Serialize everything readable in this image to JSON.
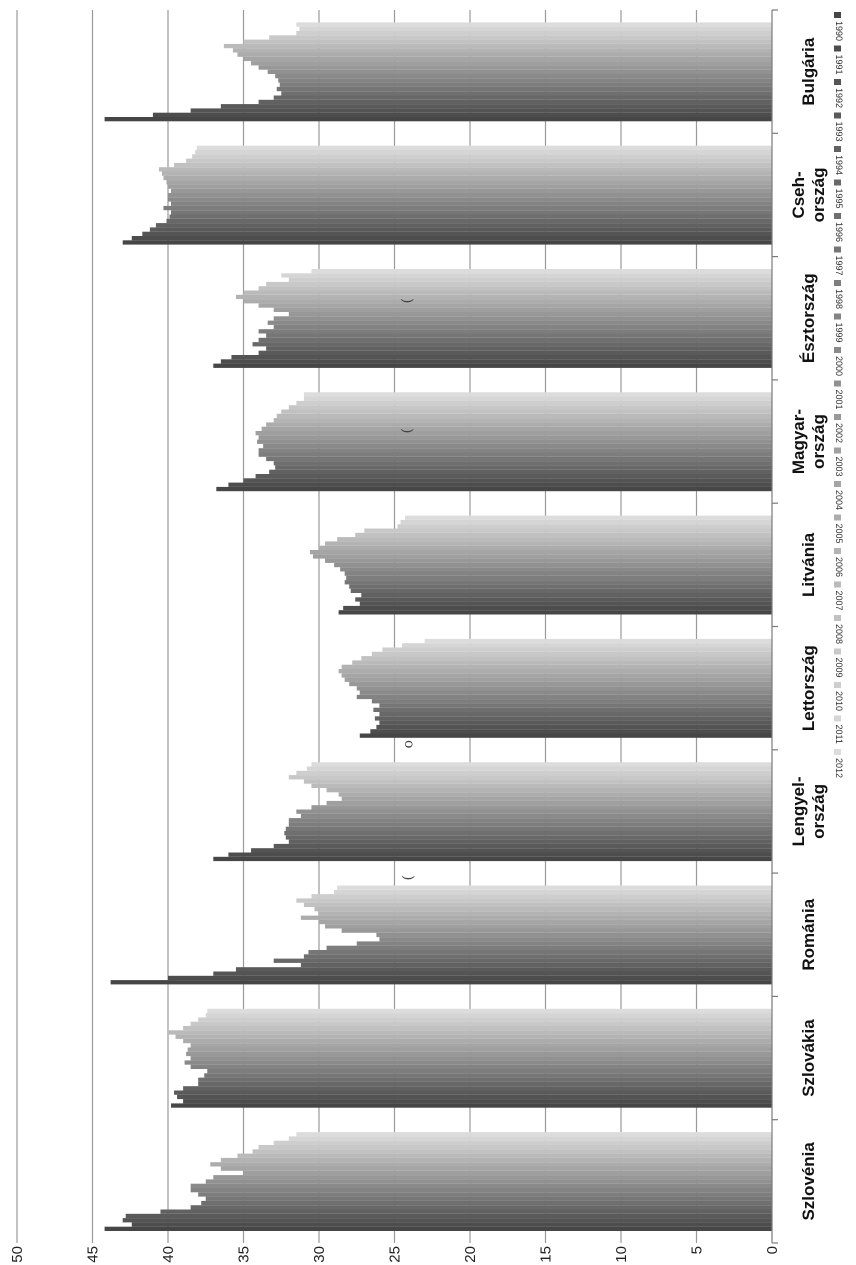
{
  "chart_data": {
    "type": "bar",
    "orientation": "horizontal",
    "title": "",
    "xlabel": "",
    "ylabel": "",
    "xlim": [
      0,
      50
    ],
    "xticks": [
      0,
      5,
      10,
      15,
      20,
      25,
      30,
      35,
      40,
      45,
      50
    ],
    "grid": true,
    "legend_position": "right",
    "categories": [
      [
        "Bulgária"
      ],
      [
        "Cseh-",
        "ország"
      ],
      [
        "Észtország"
      ],
      [
        "Magyar-",
        "ország"
      ],
      [
        "Litvánia"
      ],
      [
        "Lettország"
      ],
      [
        "Lengyel-",
        "ország"
      ],
      [
        "Románia"
      ],
      [
        "Szlovákia"
      ],
      [
        "Szlovénia"
      ]
    ],
    "years": [
      "1990",
      "1991",
      "1992",
      "1993",
      "1994",
      "1995",
      "1996",
      "1997",
      "1998",
      "1999",
      "2000",
      "2001",
      "2002",
      "2003",
      "2004",
      "2005",
      "2006",
      "2007",
      "2008",
      "2009",
      "2010",
      "2011",
      "2012"
    ],
    "values": [
      [
        44.2,
        41.0,
        38.5,
        36.5,
        34.0,
        33.0,
        32.5,
        32.8,
        32.6,
        32.7,
        32.9,
        33.4,
        34.0,
        34.5,
        35.0,
        35.4,
        35.7,
        36.3,
        35.0,
        33.3,
        31.5,
        31.3,
        31.5
      ],
      [
        43.0,
        42.4,
        41.7,
        41.2,
        40.8,
        40.1,
        39.9,
        39.8,
        40.3,
        39.8,
        40.0,
        40.0,
        39.8,
        40.0,
        40.1,
        40.3,
        40.4,
        40.6,
        39.6,
        38.8,
        38.4,
        38.2,
        38.1
      ],
      [
        37.0,
        36.5,
        35.8,
        34.0,
        33.5,
        34.4,
        34.0,
        33.5,
        34.0,
        33.0,
        33.4,
        33.0,
        32.0,
        33.0,
        34.0,
        35.0,
        35.5,
        35.0,
        34.0,
        33.5,
        32.0,
        32.5,
        30.5
      ],
      [
        36.8,
        36.0,
        35.0,
        34.2,
        33.3,
        32.9,
        33.0,
        33.5,
        34.0,
        34.0,
        33.7,
        34.1,
        34.0,
        34.2,
        33.8,
        33.5,
        33.0,
        32.8,
        32.5,
        32.0,
        31.5,
        31.0,
        31.0
      ],
      [
        28.7,
        28.4,
        27.3,
        27.6,
        27.2,
        27.9,
        28.0,
        28.3,
        28.2,
        28.3,
        28.6,
        29.0,
        29.6,
        30.4,
        30.6,
        30.0,
        29.6,
        28.8,
        27.6,
        27.0,
        24.8,
        24.6,
        24.3
      ],
      [
        27.3,
        26.6,
        26.2,
        26.0,
        26.3,
        26.0,
        26.4,
        26.0,
        26.5,
        27.5,
        27.3,
        27.5,
        28.0,
        28.3,
        28.5,
        28.7,
        28.5,
        27.8,
        27.2,
        26.5,
        25.8,
        24.5,
        23.0
      ],
      [
        37.0,
        36.0,
        34.5,
        33.0,
        32.0,
        32.2,
        32.3,
        32.2,
        32.0,
        32.0,
        31.2,
        31.5,
        30.5,
        29.5,
        28.5,
        28.7,
        29.5,
        30.5,
        31.0,
        32.0,
        31.5,
        30.8,
        30.5
      ],
      [
        43.8,
        40.0,
        37.0,
        35.5,
        31.2,
        33.0,
        31.0,
        30.7,
        29.5,
        27.5,
        26.0,
        26.2,
        28.5,
        29.6,
        30.0,
        31.2,
        30.0,
        30.3,
        31.0,
        31.5,
        30.5,
        29.0,
        28.8
      ],
      [
        39.8,
        39.0,
        39.4,
        39.6,
        39.0,
        38.0,
        38.0,
        37.6,
        37.4,
        38.5,
        38.9,
        38.5,
        38.8,
        38.7,
        38.5,
        39.0,
        39.5,
        40.0,
        39.0,
        38.5,
        38.0,
        37.5,
        37.4
      ],
      [
        44.2,
        42.4,
        43.0,
        42.8,
        40.5,
        38.5,
        37.8,
        37.5,
        38.0,
        38.5,
        38.5,
        37.5,
        37.0,
        35.0,
        36.5,
        37.2,
        36.5,
        35.4,
        34.4,
        34.0,
        33.0,
        32.0,
        31.5
      ]
    ]
  }
}
